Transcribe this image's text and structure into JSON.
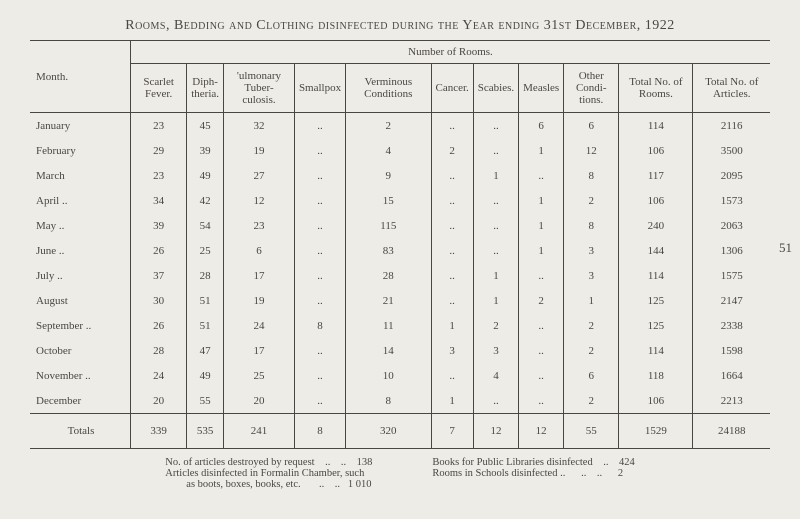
{
  "title": "Rooms, Bedding and Clothing disinfected during the Year ending 31st December, 1922",
  "page_number": "51",
  "table": {
    "month_header": "Month.",
    "number_header": "Number of Rooms.",
    "columns": [
      "Scarlet Fever.",
      "Diph-theria.",
      "'ulmonary Tuber-culosis.",
      "Smallpox",
      "Verminous Conditions",
      "Cancer.",
      "Scabies.",
      "Measles",
      "Other Condi-tions.",
      "Total No. of Rooms.",
      "Total No. of Articles."
    ],
    "rows": [
      {
        "m": "January",
        "v": [
          "23",
          "45",
          "32",
          "..",
          "2",
          "..",
          "..",
          "6",
          "6",
          "114",
          "2116"
        ]
      },
      {
        "m": "February",
        "v": [
          "29",
          "39",
          "19",
          "..",
          "4",
          "2",
          "..",
          "1",
          "12",
          "106",
          "3500"
        ]
      },
      {
        "m": "March",
        "v": [
          "23",
          "49",
          "27",
          "..",
          "9",
          "..",
          "1",
          "..",
          "8",
          "117",
          "2095"
        ]
      },
      {
        "m": "April ..",
        "v": [
          "34",
          "42",
          "12",
          "..",
          "15",
          "..",
          "..",
          "1",
          "2",
          "106",
          "1573"
        ]
      },
      {
        "m": "May ..",
        "v": [
          "39",
          "54",
          "23",
          "..",
          "115",
          "..",
          "..",
          "1",
          "8",
          "240",
          "2063"
        ]
      },
      {
        "m": "June ..",
        "v": [
          "26",
          "25",
          "6",
          "..",
          "83",
          "..",
          "..",
          "1",
          "3",
          "144",
          "1306"
        ]
      },
      {
        "m": "July ..",
        "v": [
          "37",
          "28",
          "17",
          "..",
          "28",
          "..",
          "1",
          "..",
          "3",
          "114",
          "1575"
        ]
      },
      {
        "m": "August",
        "v": [
          "30",
          "51",
          "19",
          "..",
          "21",
          "..",
          "1",
          "2",
          "1",
          "125",
          "2147"
        ]
      },
      {
        "m": "September ..",
        "v": [
          "26",
          "51",
          "24",
          "8",
          "11",
          "1",
          "2",
          "..",
          "2",
          "125",
          "2338"
        ]
      },
      {
        "m": "October",
        "v": [
          "28",
          "47",
          "17",
          "..",
          "14",
          "3",
          "3",
          "..",
          "2",
          "114",
          "1598"
        ]
      },
      {
        "m": "November ..",
        "v": [
          "24",
          "49",
          "25",
          "..",
          "10",
          "..",
          "4",
          "..",
          "6",
          "118",
          "1664"
        ]
      },
      {
        "m": "December",
        "v": [
          "20",
          "55",
          "20",
          "..",
          "8",
          "1",
          "..",
          "..",
          "2",
          "106",
          "2213"
        ]
      }
    ],
    "totals": {
      "m": "Totals",
      "v": [
        "339",
        "535",
        "241",
        "8",
        "320",
        "7",
        "12",
        "12",
        "55",
        "1529",
        "24188"
      ]
    }
  },
  "footnotes": {
    "left1": "No. of articles destroyed by request",
    "left1v": "138",
    "left2": "Articles disinfected in Formalin Chamber, such",
    "left3": "as boots, boxes, books, etc.",
    "left3v": "1 010",
    "right1": "Books for Public Libraries disinfected",
    "right1v": "424",
    "right2": "Rooms in Schools disinfected ..",
    "right2v": "2"
  }
}
